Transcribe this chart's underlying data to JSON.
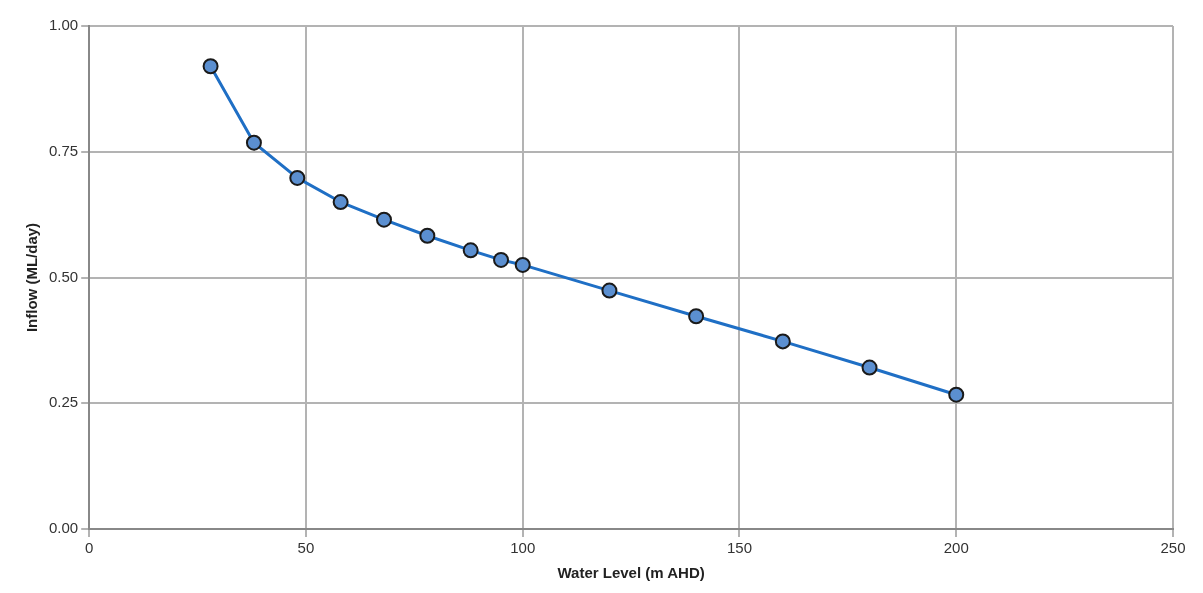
{
  "chart_data": {
    "type": "line",
    "xlabel": "Water Level (m AHD)",
    "ylabel": "Inflow (ML/day)",
    "x": [
      28,
      38,
      48,
      58,
      68,
      78,
      88,
      95,
      100,
      120,
      140,
      160,
      180,
      200
    ],
    "series": [
      {
        "color": "#1f6fc5",
        "values": [
          0.92,
          0.768,
          0.698,
          0.65,
          0.615,
          0.583,
          0.554,
          0.535,
          0.525,
          0.474,
          0.423,
          0.373,
          0.321,
          0.267
        ]
      }
    ],
    "xlim": [
      0,
      250
    ],
    "xticks": [
      0,
      50,
      100,
      150,
      200,
      250
    ],
    "ylim": [
      0,
      1
    ],
    "yticks": [
      {
        "value": 0,
        "label": "0.00"
      },
      {
        "value": 0.25,
        "label": "0.25"
      },
      {
        "value": 0.5,
        "label": "0.50"
      },
      {
        "value": 0.75,
        "label": "0.75"
      },
      {
        "value": 1,
        "label": "1.00"
      }
    ],
    "grid": true,
    "legend": false,
    "marker": "circle",
    "line_style": "solid"
  }
}
